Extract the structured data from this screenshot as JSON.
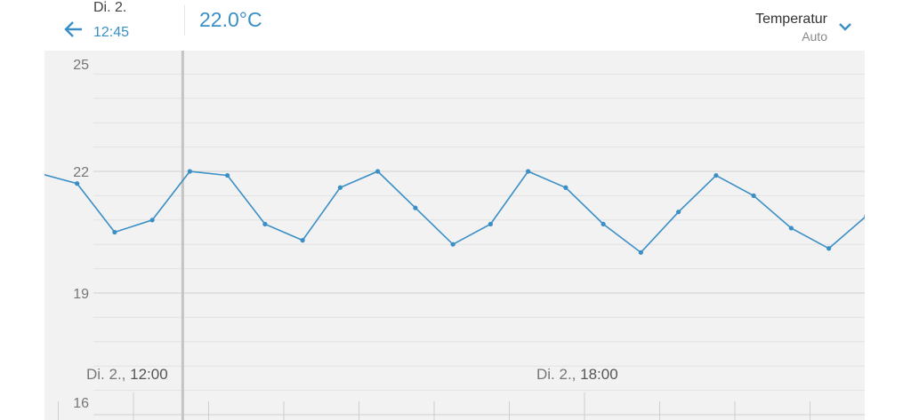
{
  "header": {
    "date": "Di. 2.",
    "time": "12:45",
    "current_value": "22.0°C",
    "selector": {
      "label": "Temperatur",
      "sublabel": "Auto"
    },
    "back_icon": "arrow-left-icon",
    "dropdown_icon": "chevron-down-icon"
  },
  "colors": {
    "accent": "#3a8fc6",
    "chart_bg": "#f2f2f2",
    "cursor": "#c4c4c4"
  },
  "chart_data": {
    "type": "line",
    "ylim": [
      16,
      25
    ],
    "y_ticks": [
      "16",
      "19",
      "22",
      "25"
    ],
    "x_tick_labels": [
      {
        "date": "Di. 2., ",
        "time": "12:00"
      },
      {
        "date": "Di. 2., ",
        "time": "18:00"
      }
    ],
    "cursor_time": "12:45",
    "grid": true,
    "x": [
      "10:45",
      "11:15",
      "11:45",
      "12:15",
      "12:45",
      "13:15",
      "13:45",
      "14:15",
      "14:45",
      "15:15",
      "15:45",
      "16:15",
      "16:45",
      "17:15",
      "17:45",
      "18:15",
      "18:45",
      "19:15",
      "19:45",
      "20:15",
      "20:45",
      "21:15",
      "21:45"
    ],
    "values": [
      21.95,
      21.7,
      20.5,
      20.8,
      22.0,
      21.9,
      20.7,
      20.3,
      21.6,
      22.0,
      21.1,
      20.2,
      20.7,
      22.0,
      21.6,
      20.7,
      20.0,
      21.0,
      21.9,
      21.4,
      20.6,
      20.1,
      20.9
    ]
  }
}
